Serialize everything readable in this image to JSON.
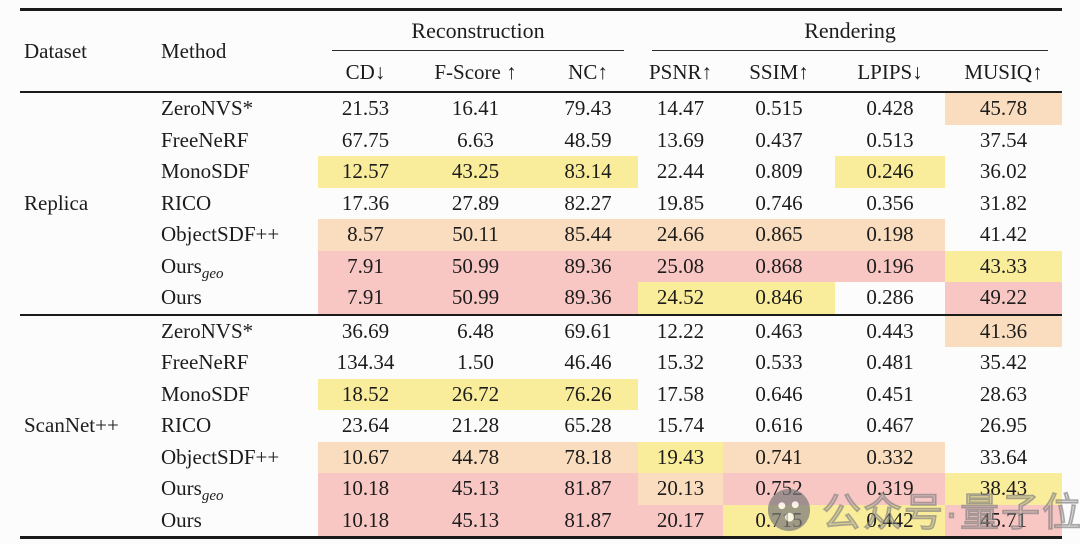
{
  "table": {
    "header": {
      "dataset": "Dataset",
      "method": "Method",
      "group_reconstruction": "Reconstruction",
      "group_rendering": "Rendering",
      "metrics": [
        "CD↓",
        "F-Score ↑",
        "NC↑",
        "PSNR↑",
        "SSIM↑",
        "LPIPS↓",
        "MUSIQ↑"
      ]
    },
    "highlight_colors": {
      "y": "#F9EC9A",
      "o": "#FADDBE",
      "p": "#F8C7C4"
    },
    "groups": [
      {
        "dataset": "Replica",
        "rows": [
          {
            "method": "ZeroNVS*",
            "sub": "",
            "values": [
              "21.53",
              "16.41",
              "79.43",
              "14.47",
              "0.515",
              "0.428",
              "45.78"
            ],
            "hl": [
              "",
              "",
              "",
              "",
              "",
              "",
              "o"
            ]
          },
          {
            "method": "FreeNeRF",
            "sub": "",
            "values": [
              "67.75",
              "6.63",
              "48.59",
              "13.69",
              "0.437",
              "0.513",
              "37.54"
            ],
            "hl": [
              "",
              "",
              "",
              "",
              "",
              "",
              ""
            ]
          },
          {
            "method": "MonoSDF",
            "sub": "",
            "values": [
              "12.57",
              "43.25",
              "83.14",
              "22.44",
              "0.809",
              "0.246",
              "36.02"
            ],
            "hl": [
              "y",
              "y",
              "y",
              "",
              "",
              "y",
              ""
            ]
          },
          {
            "method": "RICO",
            "sub": "",
            "values": [
              "17.36",
              "27.89",
              "82.27",
              "19.85",
              "0.746",
              "0.356",
              "31.82"
            ],
            "hl": [
              "",
              "",
              "",
              "",
              "",
              "",
              ""
            ]
          },
          {
            "method": "ObjectSDF++",
            "sub": "",
            "values": [
              "8.57",
              "50.11",
              "85.44",
              "24.66",
              "0.865",
              "0.198",
              "41.42"
            ],
            "hl": [
              "o",
              "o",
              "o",
              "o",
              "o",
              "o",
              ""
            ]
          },
          {
            "method": "Ours",
            "sub": "geo",
            "values": [
              "7.91",
              "50.99",
              "89.36",
              "25.08",
              "0.868",
              "0.196",
              "43.33"
            ],
            "hl": [
              "p",
              "p",
              "p",
              "p",
              "p",
              "p",
              "y"
            ]
          },
          {
            "method": "Ours",
            "sub": "",
            "values": [
              "7.91",
              "50.99",
              "89.36",
              "24.52",
              "0.846",
              "0.286",
              "49.22"
            ],
            "hl": [
              "p",
              "p",
              "p",
              "y",
              "y",
              "",
              "p"
            ]
          }
        ]
      },
      {
        "dataset": "ScanNet++",
        "rows": [
          {
            "method": "ZeroNVS*",
            "sub": "",
            "values": [
              "36.69",
              "6.48",
              "69.61",
              "12.22",
              "0.463",
              "0.443",
              "41.36"
            ],
            "hl": [
              "",
              "",
              "",
              "",
              "",
              "",
              "o"
            ]
          },
          {
            "method": "FreeNeRF",
            "sub": "",
            "values": [
              "134.34",
              "1.50",
              "46.46",
              "15.32",
              "0.533",
              "0.481",
              "35.42"
            ],
            "hl": [
              "",
              "",
              "",
              "",
              "",
              "",
              ""
            ]
          },
          {
            "method": "MonoSDF",
            "sub": "",
            "values": [
              "18.52",
              "26.72",
              "76.26",
              "17.58",
              "0.646",
              "0.451",
              "28.63"
            ],
            "hl": [
              "y",
              "y",
              "y",
              "",
              "",
              "",
              ""
            ]
          },
          {
            "method": "RICO",
            "sub": "",
            "values": [
              "23.64",
              "21.28",
              "65.28",
              "15.74",
              "0.616",
              "0.467",
              "26.95"
            ],
            "hl": [
              "",
              "",
              "",
              "",
              "",
              "",
              ""
            ]
          },
          {
            "method": "ObjectSDF++",
            "sub": "",
            "values": [
              "10.67",
              "44.78",
              "78.18",
              "19.43",
              "0.741",
              "0.332",
              "33.64"
            ],
            "hl": [
              "o",
              "o",
              "o",
              "y",
              "o",
              "o",
              ""
            ]
          },
          {
            "method": "Ours",
            "sub": "geo",
            "values": [
              "10.18",
              "45.13",
              "81.87",
              "20.13",
              "0.752",
              "0.319",
              "38.43"
            ],
            "hl": [
              "p",
              "p",
              "p",
              "o",
              "p",
              "p",
              "y"
            ]
          },
          {
            "method": "Ours",
            "sub": "",
            "values": [
              "10.18",
              "45.13",
              "81.87",
              "20.17",
              "0.715",
              "0.442",
              "45.71"
            ],
            "hl": [
              "p",
              "p",
              "p",
              "p",
              "y",
              "y",
              "p"
            ]
          }
        ]
      }
    ]
  },
  "watermark": {
    "text": "公众号·量子位",
    "icon": "wechat-face-icon"
  }
}
